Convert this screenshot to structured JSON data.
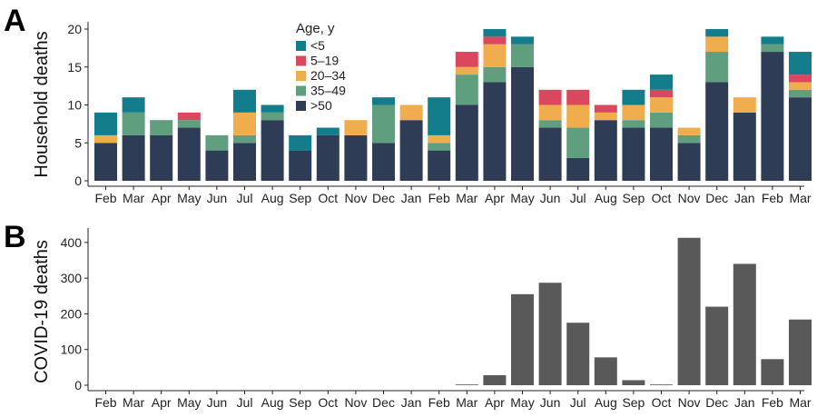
{
  "chart_data": [
    {
      "type": "bar",
      "panel": "A",
      "stacked": true,
      "ylabel": "Household deaths",
      "ylim": [
        0,
        20
      ],
      "yticks": [
        0,
        5,
        10,
        15,
        20
      ],
      "categories": [
        "Feb",
        "Mar",
        "Apr",
        "May",
        "Jun",
        "Jul",
        "Aug",
        "Sep",
        "Oct",
        "Nov",
        "Dec",
        "Jan",
        "Feb",
        "Mar",
        "Apr",
        "May",
        "Jun",
        "Jul",
        "Aug",
        "Sep",
        "Oct",
        "Nov",
        "Dec",
        "Jan",
        "Feb",
        "Mar"
      ],
      "legend": {
        "title": "Age, y",
        "placement": "top-center"
      },
      "series": [
        {
          "name": ">50",
          "color": "#2e3c56",
          "values": [
            5,
            6,
            6,
            7,
            4,
            5,
            8,
            4,
            6,
            6,
            5,
            8,
            4,
            10,
            13,
            15,
            7,
            3,
            8,
            7,
            7,
            5,
            13,
            9,
            17,
            11
          ]
        },
        {
          "name": "35–49",
          "color": "#5f9e7f",
          "values": [
            0,
            3,
            2,
            1,
            2,
            1,
            1,
            0,
            0,
            0,
            5,
            0,
            1,
            4,
            2,
            3,
            1,
            4,
            0,
            1,
            2,
            1,
            4,
            0,
            1,
            1
          ]
        },
        {
          "name": "20–34",
          "color": "#f0ad4e",
          "values": [
            1,
            0,
            0,
            0,
            0,
            3,
            0,
            0,
            0,
            2,
            0,
            2,
            1,
            1,
            3,
            0,
            2,
            3,
            1,
            2,
            2,
            1,
            2,
            2,
            0,
            1
          ]
        },
        {
          "name": "5–19",
          "color": "#d9485e",
          "values": [
            0,
            0,
            0,
            1,
            0,
            0,
            0,
            0,
            0,
            0,
            0,
            0,
            0,
            2,
            1,
            0,
            2,
            2,
            1,
            0,
            1,
            0,
            0,
            0,
            0,
            1
          ]
        },
        {
          "name": "<5",
          "color": "#137d8c",
          "values": [
            3,
            2,
            0,
            0,
            0,
            3,
            1,
            2,
            1,
            0,
            1,
            0,
            5,
            0,
            1,
            1,
            0,
            0,
            0,
            2,
            2,
            0,
            1,
            0,
            1,
            3
          ]
        }
      ]
    },
    {
      "type": "bar",
      "panel": "B",
      "ylabel": "COVID-19 deaths",
      "ylim": [
        0,
        420
      ],
      "yticks": [
        0,
        100,
        200,
        300,
        400
      ],
      "color": "#595959",
      "categories": [
        "Feb",
        "Mar",
        "Apr",
        "May",
        "Jun",
        "Jul",
        "Aug",
        "Sep",
        "Oct",
        "Nov",
        "Dec",
        "Jan",
        "Feb",
        "Mar",
        "Apr",
        "May",
        "Jun",
        "Jul",
        "Aug",
        "Sep",
        "Oct",
        "Nov",
        "Dec",
        "Jan",
        "Feb",
        "Mar"
      ],
      "values": [
        0,
        0,
        0,
        0,
        0,
        0,
        0,
        0,
        0,
        0,
        0,
        0,
        0,
        2,
        28,
        255,
        287,
        175,
        78,
        14,
        2,
        413,
        220,
        340,
        73,
        184
      ]
    }
  ]
}
